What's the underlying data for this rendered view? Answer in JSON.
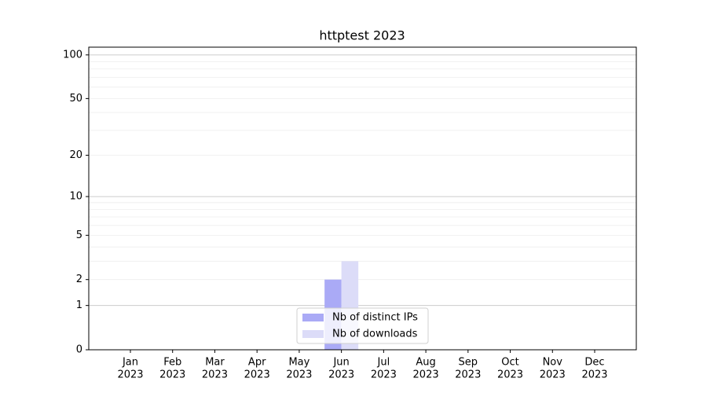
{
  "chart_data": {
    "type": "bar",
    "title": "httptest 2023",
    "categories": [
      [
        "Jan",
        "2023"
      ],
      [
        "Feb",
        "2023"
      ],
      [
        "Mar",
        "2023"
      ],
      [
        "Apr",
        "2023"
      ],
      [
        "May",
        "2023"
      ],
      [
        "Jun",
        "2023"
      ],
      [
        "Jul",
        "2023"
      ],
      [
        "Aug",
        "2023"
      ],
      [
        "Sep",
        "2023"
      ],
      [
        "Oct",
        "2023"
      ],
      [
        "Nov",
        "2023"
      ],
      [
        "Dec",
        "2023"
      ]
    ],
    "series": [
      {
        "name": "Nb of distinct IPs",
        "color": "#aaaaf6",
        "values": [
          0,
          0,
          0,
          0,
          0,
          2,
          0,
          0,
          0,
          0,
          0,
          0
        ]
      },
      {
        "name": "Nb of downloads",
        "color": "#dcdcf8",
        "values": [
          0,
          0,
          0,
          0,
          0,
          3,
          0,
          0,
          0,
          0,
          0,
          0
        ]
      }
    ],
    "yscale": "log1p",
    "ylim": [
      0,
      113
    ],
    "yticks": [
      0,
      1,
      2,
      5,
      10,
      20,
      50,
      100
    ],
    "ygrid_major": [
      1,
      10,
      100
    ],
    "ygrid_minor": [
      2,
      3,
      4,
      5,
      6,
      7,
      8,
      9,
      20,
      30,
      40,
      50,
      60,
      70,
      80,
      90
    ],
    "legend": "lower center"
  }
}
